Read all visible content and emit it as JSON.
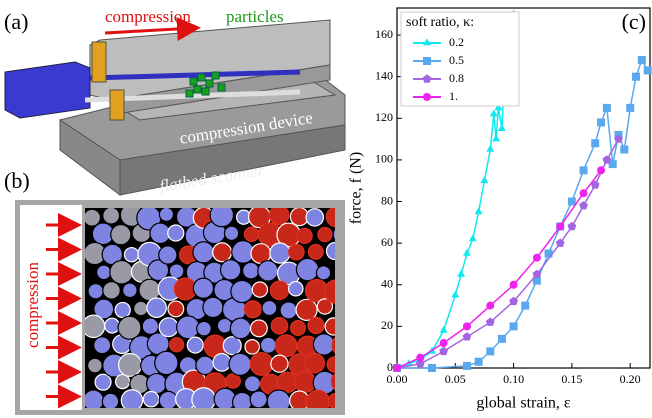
{
  "illustration": {
    "panel_a_label": "(a)",
    "compression": "compression",
    "particles": "particles",
    "device": "compression device",
    "scanner": "flatbed scanner",
    "panel_b_label": "(b)",
    "compression_vertical": "compression"
  },
  "chart_data": {
    "type": "line",
    "panel_label": "(c)",
    "x_label": "global strain, ε",
    "y_label": "force, f (N)",
    "legend_title": "soft ratio, κ:",
    "legend": "upper-left",
    "xlim": [
      0,
      0.217
    ],
    "ylim": [
      0,
      173
    ],
    "xticks": [
      {
        "value": 0,
        "label": "0.00"
      },
      0.05,
      {
        "value": 0.1,
        "label": "0.10"
      },
      0.15,
      {
        "value": 0.2,
        "label": "0.20"
      }
    ],
    "yticks": [
      0,
      20,
      40,
      60,
      80,
      100,
      120,
      140,
      160
    ],
    "series": [
      {
        "name": "0.2",
        "color": "#10e8f0",
        "marker": "triangle",
        "x": [
          0,
          0.01,
          0.02,
          0.03,
          0.04,
          0.05,
          0.055,
          0.06,
          0.065,
          0.07,
          0.075,
          0.08,
          0.083,
          0.085,
          0.087,
          0.09,
          0.092,
          0.095,
          0.1
        ],
        "values": [
          0,
          2,
          4,
          8,
          18,
          35,
          45,
          55,
          62,
          75,
          90,
          105,
          122,
          110,
          125,
          115,
          140,
          155,
          170
        ]
      },
      {
        "name": "0.5",
        "color": "#5aa8ee",
        "marker": "square",
        "x": [
          0,
          0.03,
          0.06,
          0.07,
          0.08,
          0.09,
          0.1,
          0.11,
          0.12,
          0.13,
          0.14,
          0.15,
          0.16,
          0.17,
          0.175,
          0.18,
          0.185,
          0.19,
          0.195,
          0.2,
          0.205,
          0.21,
          0.215
        ],
        "values": [
          0,
          0,
          1,
          3,
          8,
          14,
          20,
          30,
          42,
          55,
          68,
          80,
          95,
          108,
          118,
          125,
          98,
          112,
          105,
          125,
          140,
          148,
          143
        ]
      },
      {
        "name": "0.8",
        "color": "#a465e2",
        "marker": "pentagon",
        "x": [
          0,
          0.02,
          0.04,
          0.06,
          0.08,
          0.1,
          0.12,
          0.14,
          0.15,
          0.16,
          0.17,
          0.18,
          0.19
        ],
        "values": [
          0,
          2,
          8,
          15,
          22,
          32,
          45,
          60,
          68,
          78,
          88,
          100,
          110
        ]
      },
      {
        "name": "1.",
        "color": "#ee22ee",
        "marker": "circle",
        "x": [
          0,
          0.02,
          0.04,
          0.06,
          0.08,
          0.1,
          0.12,
          0.14,
          0.16,
          0.175
        ],
        "values": [
          0,
          5,
          12,
          20,
          30,
          40,
          53,
          68,
          84,
          95
        ]
      }
    ]
  }
}
